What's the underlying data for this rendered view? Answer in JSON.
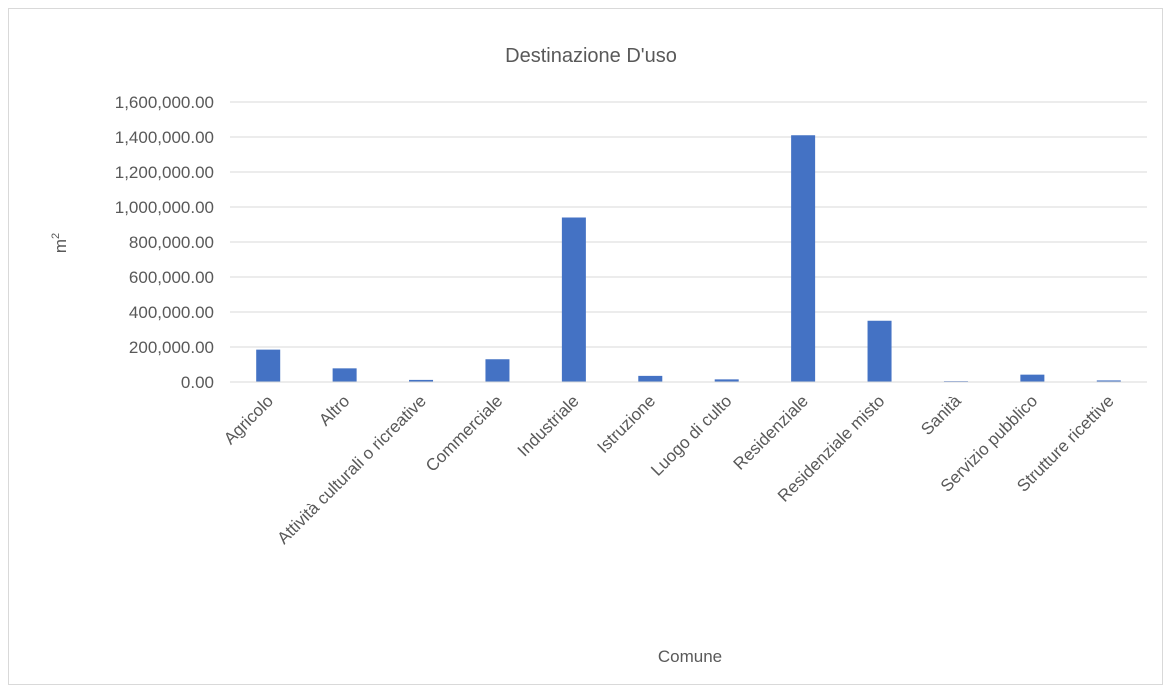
{
  "chart_data": {
    "type": "bar",
    "title": "Destinazione D'uso",
    "xlabel": "Comune",
    "ylabel": "m",
    "ylabel_superscript": "2",
    "categories": [
      "Agricolo",
      "Altro",
      "Attività culturali o ricreative",
      "Commerciale",
      "Industriale",
      "Istruzione",
      "Luogo di culto",
      "Residenziale",
      "Residenziale misto",
      "Sanità",
      "Servizio pubblico",
      "Strutture ricettive"
    ],
    "values": [
      185000,
      78000,
      12000,
      130000,
      940000,
      35000,
      15000,
      1410000,
      350000,
      5000,
      42000,
      9000
    ],
    "ylim": [
      0,
      1600000
    ],
    "yticks": [
      0,
      200000,
      400000,
      600000,
      800000,
      1000000,
      1200000,
      1400000,
      1600000
    ],
    "ytick_labels": [
      "0.00",
      "200,000.00",
      "400,000.00",
      "600,000.00",
      "800,000.00",
      "1,000,000.00",
      "1,200,000.00",
      "1,400,000.00",
      "1,600,000.00"
    ],
    "bar_color": "#4472C4",
    "grid": true,
    "legend": "none"
  }
}
